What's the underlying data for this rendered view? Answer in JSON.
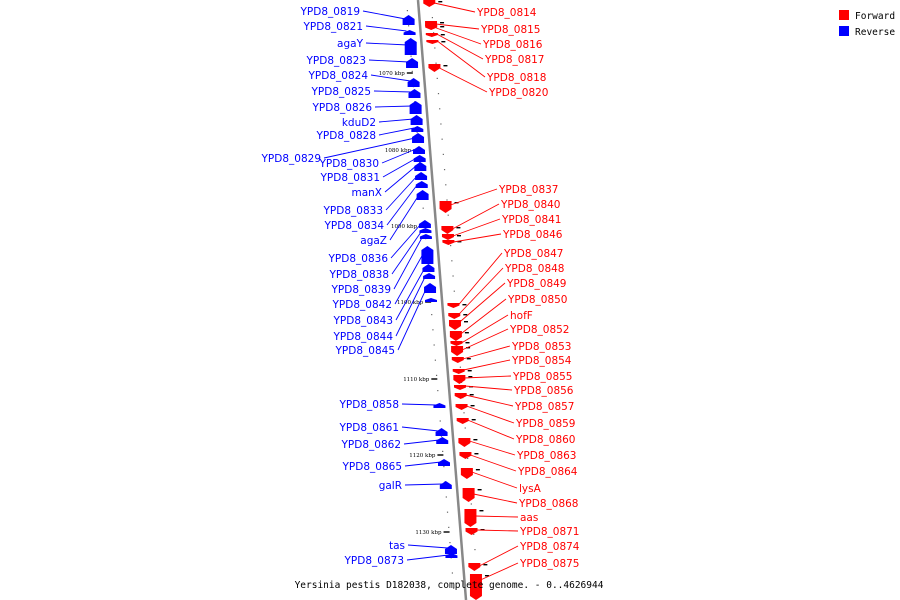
{
  "caption": "Yersinia pestis D182038, complete genome. - 0..4626944",
  "legend": {
    "forward_label": "Forward",
    "reverse_label": "Reverse",
    "forward_color": "#ff0000",
    "reverse_color": "#0000ff"
  },
  "axis_color": "#888888",
  "ticks": [
    "1070 kbp",
    "1080 kbp",
    "1090 kbp",
    "1100 kbp",
    "1110 kbp",
    "1120 kbp",
    "1130 kbp"
  ],
  "forward_genes": [
    "YPD8_0814",
    "YPD8_0815",
    "YPD8_0816",
    "YPD8_0817",
    "YPD8_0818",
    "YPD8_0820",
    "YPD8_0837",
    "YPD8_0840",
    "YPD8_0841",
    "YPD8_0846",
    "YPD8_0847",
    "YPD8_0848",
    "YPD8_0849",
    "YPD8_0850",
    "hofF",
    "YPD8_0852",
    "YPD8_0853",
    "YPD8_0854",
    "YPD8_0855",
    "YPD8_0856",
    "YPD8_0857",
    "YPD8_0859",
    "YPD8_0860",
    "YPD8_0863",
    "YPD8_0864",
    "lysA",
    "YPD8_0868",
    "aas",
    "YPD8_0871",
    "YPD8_0874",
    "YPD8_0875"
  ],
  "reverse_genes": [
    "YPD8_0819",
    "YPD8_0821",
    "agaY",
    "YPD8_0823",
    "YPD8_0824",
    "YPD8_0825",
    "YPD8_0826",
    "kduD2",
    "YPD8_0828",
    "YPD8_0829",
    "YPD8_0830",
    "YPD8_0831",
    "manX",
    "YPD8_0833",
    "YPD8_0834",
    "agaZ",
    "YPD8_0836",
    "YPD8_0838",
    "YPD8_0839",
    "YPD8_0842",
    "YPD8_0843",
    "YPD8_0844",
    "YPD8_0845",
    "YPD8_0858",
    "YPD8_0861",
    "YPD8_0862",
    "YPD8_0865",
    "galR",
    "tas",
    "YPD8_0873"
  ]
}
